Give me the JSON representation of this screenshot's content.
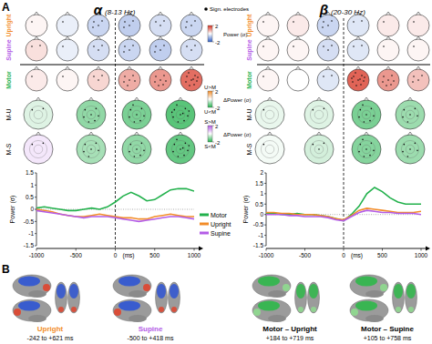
{
  "panels": [
    "A",
    "B"
  ],
  "chart_data": [
    {
      "type": "line",
      "title": "α",
      "subtitle": "(8-13 Hz)",
      "xlabel": "(ms)",
      "ylabel": "Power (σ)",
      "legend": "right",
      "event": 0,
      "baseline": 0,
      "x": [
        -1000,
        -900,
        -800,
        -700,
        -600,
        -500,
        -400,
        -300,
        -200,
        -100,
        0,
        100,
        200,
        300,
        400,
        500,
        600,
        700,
        800,
        900,
        1000
      ],
      "xlim": [
        -1000,
        1000
      ],
      "xticks": [
        -1000,
        -500,
        0,
        500,
        1000
      ],
      "ylim": [
        -1.5,
        1.5
      ],
      "yticks": [
        -1.5,
        -1,
        -0.5,
        0,
        0.5,
        1,
        1.5
      ],
      "series": [
        {
          "name": "Motor",
          "color": "#22b14c",
          "values": [
            0.05,
            0.1,
            0.05,
            0.0,
            -0.05,
            -0.05,
            0.0,
            0.05,
            0.0,
            0.1,
            0.3,
            0.55,
            0.7,
            0.55,
            0.35,
            0.4,
            0.6,
            0.8,
            0.85,
            0.85,
            0.75
          ]
        },
        {
          "name": "Upright",
          "color": "#f28c28",
          "values": [
            0.0,
            -0.05,
            -0.1,
            -0.2,
            -0.25,
            -0.3,
            -0.3,
            -0.25,
            -0.2,
            -0.25,
            -0.3,
            -0.35,
            -0.35,
            -0.4,
            -0.4,
            -0.3,
            -0.25,
            -0.2,
            -0.25,
            -0.3,
            -0.3
          ]
        },
        {
          "name": "Supine",
          "color": "#b35ce6",
          "values": [
            -0.05,
            -0.1,
            -0.15,
            -0.2,
            -0.25,
            -0.3,
            -0.35,
            -0.3,
            -0.3,
            -0.3,
            -0.35,
            -0.4,
            -0.45,
            -0.5,
            -0.45,
            -0.4,
            -0.35,
            -0.3,
            -0.3,
            -0.35,
            -0.4
          ]
        }
      ]
    },
    {
      "type": "line",
      "title": "β",
      "subtitle": "(20-30 Hz)",
      "xlabel": "(ms)",
      "ylabel": "Power (σ)",
      "event": 0,
      "baseline": 0,
      "x": [
        -1000,
        -900,
        -800,
        -700,
        -600,
        -500,
        -400,
        -300,
        -200,
        -100,
        0,
        100,
        200,
        300,
        400,
        500,
        600,
        700,
        800,
        900,
        1000
      ],
      "xlim": [
        -1000,
        1000
      ],
      "xticks": [
        -1000,
        -500,
        0,
        500,
        1000
      ],
      "ylim": [
        -1.5,
        2
      ],
      "yticks": [
        -1.5,
        -1,
        -0.5,
        0,
        0.5,
        1,
        1.5,
        2
      ],
      "series": [
        {
          "name": "Motor",
          "color": "#22b14c",
          "values": [
            0.05,
            0.05,
            0.0,
            0.0,
            0.05,
            0.0,
            0.0,
            -0.05,
            -0.1,
            -0.2,
            -0.3,
            0.0,
            0.4,
            1.0,
            1.3,
            1.1,
            0.8,
            0.6,
            0.5,
            0.5,
            0.5
          ]
        },
        {
          "name": "Upright",
          "color": "#f28c28",
          "values": [
            0.1,
            0.1,
            0.05,
            0.05,
            0.0,
            0.0,
            0.0,
            -0.05,
            -0.1,
            -0.2,
            -0.25,
            -0.05,
            0.2,
            0.3,
            0.25,
            0.2,
            0.15,
            0.1,
            0.1,
            0.1,
            0.15
          ]
        },
        {
          "name": "Supine",
          "color": "#b35ce6",
          "values": [
            0.0,
            0.0,
            0.0,
            -0.05,
            -0.05,
            -0.1,
            -0.1,
            -0.1,
            -0.15,
            -0.25,
            -0.3,
            -0.1,
            0.1,
            0.2,
            0.15,
            0.1,
            0.1,
            0.05,
            0.05,
            0.05,
            0.0
          ]
        }
      ]
    }
  ],
  "topomaps": [
    {
      "rows": [
        {
          "label": "Upright",
          "color": "#f28c28",
          "values": [
            0.1,
            -0.2,
            -0.5,
            -0.6,
            -0.4,
            -0.5
          ]
        },
        {
          "label": "Supine",
          "color": "#b35ce6",
          "values": [
            0.3,
            -0.2,
            -0.4,
            -0.5,
            -0.6,
            -0.4
          ]
        },
        {
          "label": "Motor",
          "color": "#22b14c",
          "values": [
            0.2,
            0.1,
            0.4,
            0.8,
            1.0,
            1.4
          ]
        },
        {
          "label": "M-U",
          "color": "#000000",
          "values": [
            0.3,
            1.0,
            1.2,
            1.5
          ]
        },
        {
          "label": "M-S",
          "color": "#000000",
          "values": [
            -0.3,
            0.8,
            1.0,
            1.4
          ]
        }
      ]
    },
    {
      "rows": [
        {
          "label": "Upright",
          "color": "#f28c28",
          "values": [
            0.1,
            0.2,
            -0.5,
            -0.3,
            0.2,
            0.2
          ]
        },
        {
          "label": "Supine",
          "color": "#b35ce6",
          "values": [
            0.1,
            0.1,
            -0.4,
            -0.3,
            0.1,
            0.1
          ]
        },
        {
          "label": "Motor",
          "color": "#22b14c",
          "values": [
            0.1,
            0.0,
            -0.3,
            1.5,
            1.0,
            0.6
          ]
        },
        {
          "label": "M-U",
          "color": "#000000",
          "values": [
            0.2,
            0.3,
            1.2,
            0.9
          ]
        },
        {
          "label": "M-S",
          "color": "#000000",
          "values": [
            0.1,
            0.4,
            1.1,
            0.9
          ]
        }
      ]
    }
  ],
  "sign_legend": "Sign. electrodes",
  "colorbars": [
    {
      "title": "Power (σ)",
      "range": [
        -2,
        2
      ],
      "ticks": [
        -2,
        2
      ]
    },
    {
      "title": "ΔPower (σ)",
      "top": "U>M",
      "bottom": "U<M",
      "range": [
        -2,
        2
      ],
      "ticks": [
        -2,
        2
      ]
    },
    {
      "title": "ΔPower (σ)",
      "top": "S>M",
      "bottom": "S<M",
      "range": [
        -2,
        2
      ],
      "ticks": [
        -2,
        2
      ]
    }
  ],
  "brains": [
    {
      "label": "Upright",
      "window": "-242 to +621 ms",
      "color": "#f28c28",
      "colors": [
        "#2f55d4",
        "#e0452e"
      ]
    },
    {
      "label": "Supine",
      "window": "-500 to +418 ms",
      "color": "#b35ce6",
      "colors": [
        "#2f55d4",
        "#e0452e"
      ]
    },
    {
      "label": "Motor – Upright",
      "window": "+184 to +719 ms",
      "color": "#000000",
      "colors": [
        "#2fb84a",
        "#8fdc8f"
      ]
    },
    {
      "label": "Motor – Supine",
      "window": "+105 to +758 ms",
      "color": "#000000",
      "colors": [
        "#2fb84a",
        "#8fdc8f"
      ]
    }
  ]
}
